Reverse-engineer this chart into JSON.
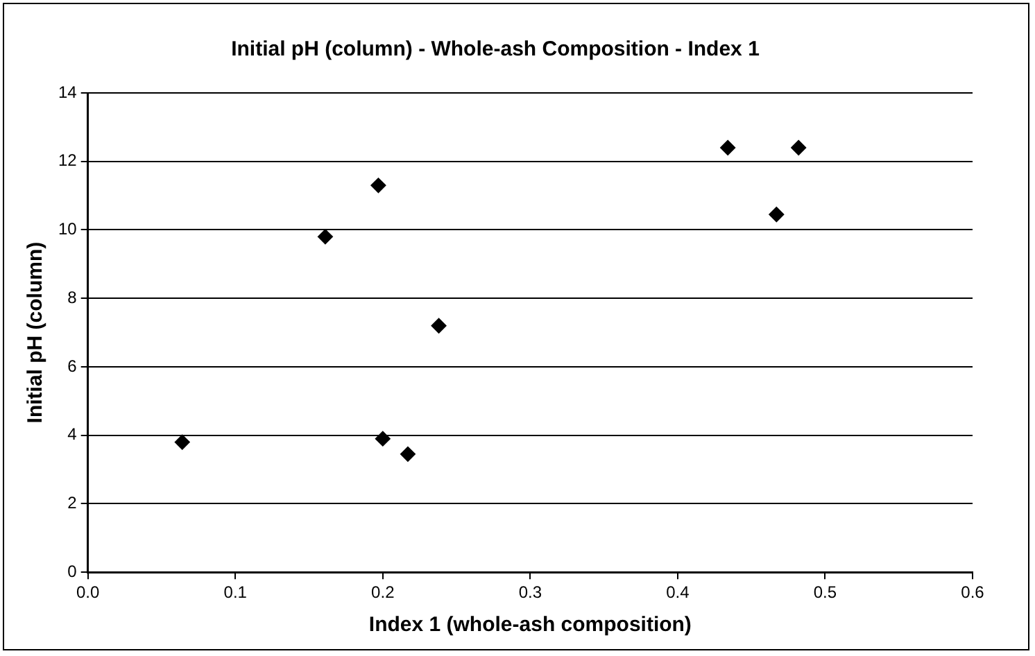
{
  "chart_data": {
    "type": "scatter",
    "title": "Initial pH (column) - Whole-ash Composition - Index 1",
    "xlabel": "Index 1 (whole-ash composition)",
    "ylabel": "Initial pH (column)",
    "x": [
      0.064,
      0.161,
      0.197,
      0.2,
      0.217,
      0.238,
      0.434,
      0.467,
      0.482
    ],
    "values": [
      3.8,
      9.8,
      11.3,
      3.9,
      3.45,
      7.2,
      12.4,
      10.45,
      12.4
    ],
    "color": "#000000",
    "marker": "diamond",
    "xlim": [
      0,
      0.6
    ],
    "xticks": [
      {
        "value": 0,
        "label": "0.0"
      },
      {
        "value": 0.1,
        "label": "0.1"
      },
      {
        "value": 0.2,
        "label": "0.2"
      },
      {
        "value": 0.3,
        "label": "0.3"
      },
      {
        "value": 0.4,
        "label": "0.4"
      },
      {
        "value": 0.5,
        "label": "0.5"
      },
      {
        "value": 0.6,
        "label": "0.6"
      }
    ],
    "ylim": [
      0,
      14
    ],
    "yticks": [
      0,
      2,
      4,
      6,
      8,
      10,
      12,
      14
    ],
    "grid": "y",
    "legend": false
  }
}
